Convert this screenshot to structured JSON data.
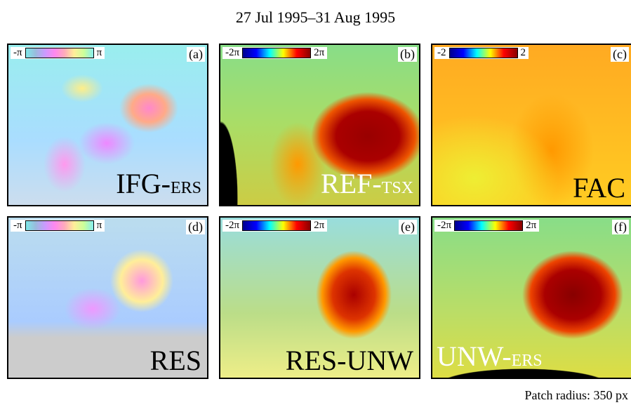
{
  "title": "27 Jul 1995–31 Aug 1995",
  "panels": [
    {
      "label": "(a)",
      "name": "IFG-",
      "name_small": "ERS",
      "colorbar": [
        "-π",
        "π"
      ]
    },
    {
      "label": "(b)",
      "name": "REF-",
      "name_small": "TSX",
      "colorbar": [
        "-2π",
        "2π"
      ]
    },
    {
      "label": "(c)",
      "name": "FAC",
      "colorbar": [
        "-2",
        "2"
      ]
    },
    {
      "label": "(d)",
      "name": "RES",
      "colorbar": [
        "-π",
        "π"
      ]
    },
    {
      "label": "(e)",
      "name": "RES-UNW",
      "colorbar": [
        "-2π",
        "2π"
      ]
    },
    {
      "label": "(f)",
      "name": "UNW-",
      "name_small": "ERS",
      "colorbar": [
        "-2π",
        "2π"
      ]
    }
  ],
  "footer": "Patch radius: 350 px"
}
